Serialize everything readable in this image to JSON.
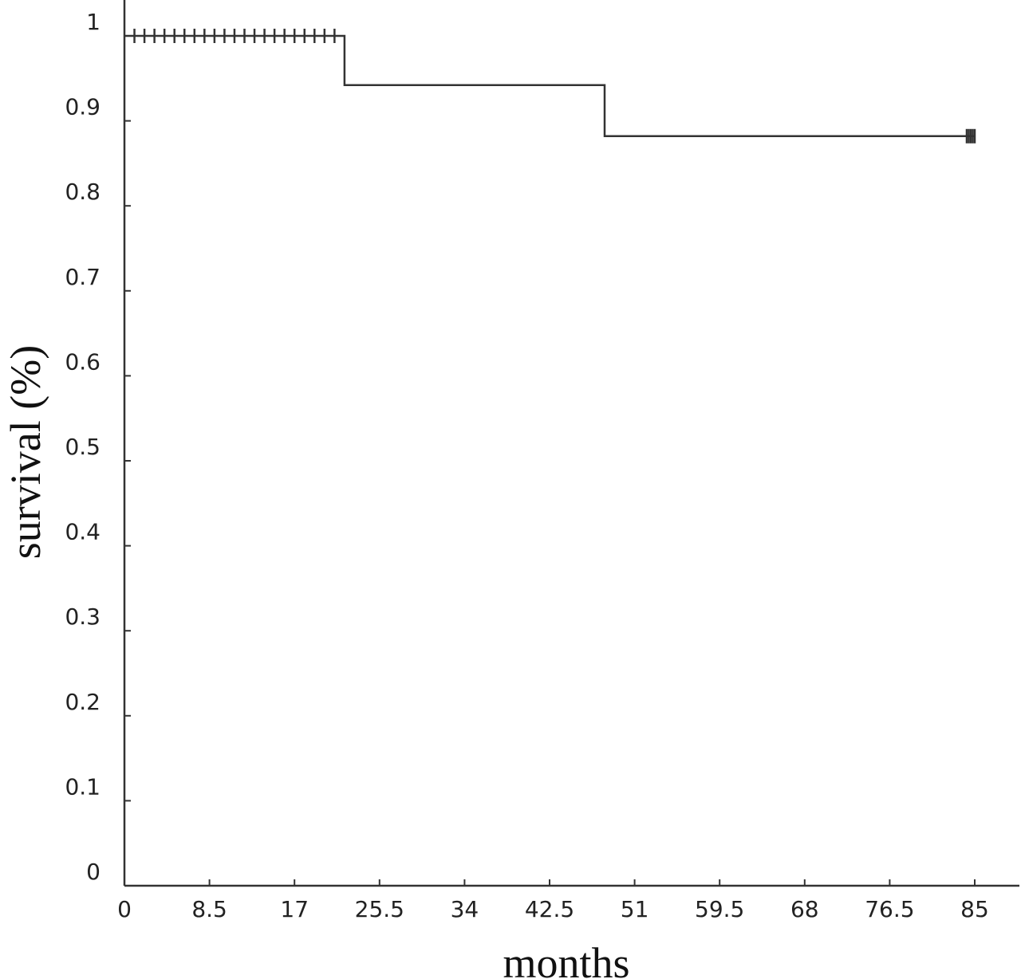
{
  "chart_data": {
    "type": "line",
    "subtype": "kaplan-meier-step",
    "title": "",
    "xlabel": "months",
    "ylabel": "survival (%)",
    "xlim": [
      0,
      88
    ],
    "ylim": [
      0,
      1.05
    ],
    "x_ticks": [
      0,
      8.5,
      17,
      25.5,
      34,
      42.5,
      51,
      59.5,
      68,
      76.5,
      85
    ],
    "x_tick_labels": [
      "0",
      "8.5",
      "17",
      "25.5",
      "34",
      "42.5",
      "51",
      "59.5",
      "68",
      "76.5",
      "85"
    ],
    "y_ticks": [
      0,
      0.1,
      0.2,
      0.3,
      0.4,
      0.5,
      0.6,
      0.7,
      0.8,
      0.9,
      1
    ],
    "y_tick_labels": [
      "0",
      "0.1",
      "0.2",
      "0.3",
      "0.4",
      "0.5",
      "0.6",
      "0.7",
      "0.8",
      "0.9",
      "1"
    ],
    "grid": false,
    "series": [
      {
        "steps": [
          {
            "x": 0,
            "y": 1
          },
          {
            "x": 22,
            "y": 1
          },
          {
            "x": 22,
            "y": 0.942
          },
          {
            "x": 48,
            "y": 0.942
          },
          {
            "x": 48,
            "y": 0.882
          },
          {
            "x": 85,
            "y": 0.882
          }
        ],
        "censored": [
          {
            "x": 1,
            "y": 1
          },
          {
            "x": 2,
            "y": 1
          },
          {
            "x": 3,
            "y": 1
          },
          {
            "x": 4,
            "y": 1
          },
          {
            "x": 5,
            "y": 1
          },
          {
            "x": 6,
            "y": 1
          },
          {
            "x": 7,
            "y": 1
          },
          {
            "x": 8,
            "y": 1
          },
          {
            "x": 9,
            "y": 1
          },
          {
            "x": 10,
            "y": 1
          },
          {
            "x": 11,
            "y": 1
          },
          {
            "x": 12,
            "y": 1
          },
          {
            "x": 13,
            "y": 1
          },
          {
            "x": 14,
            "y": 1
          },
          {
            "x": 15,
            "y": 1
          },
          {
            "x": 16,
            "y": 1
          },
          {
            "x": 17,
            "y": 1
          },
          {
            "x": 18,
            "y": 1
          },
          {
            "x": 19,
            "y": 1
          },
          {
            "x": 20,
            "y": 1
          },
          {
            "x": 21,
            "y": 1
          },
          {
            "x": 84.2,
            "y": 0.882
          },
          {
            "x": 84.4,
            "y": 0.882
          },
          {
            "x": 84.6,
            "y": 0.882
          },
          {
            "x": 84.8,
            "y": 0.882
          },
          {
            "x": 85.0,
            "y": 0.882
          }
        ]
      }
    ],
    "colors": {
      "line": "#333333",
      "text": "#222222",
      "background": "#ffffff"
    }
  }
}
